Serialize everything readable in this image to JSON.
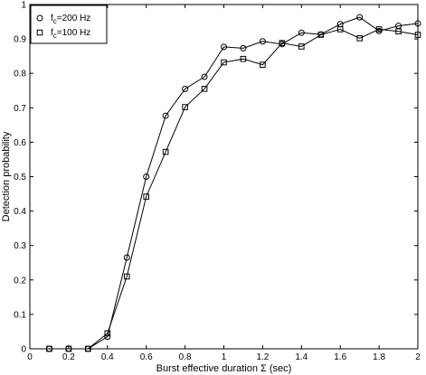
{
  "chart_data": {
    "type": "line",
    "title": "",
    "xlabel": "Burst effective duration Σ (sec)",
    "ylabel": "Detection probability",
    "xlim": [
      0,
      2
    ],
    "ylim": [
      0,
      1
    ],
    "x_ticks": [
      0,
      0.2,
      0.4,
      0.6,
      0.8,
      1,
      1.2,
      1.4,
      1.6,
      1.8,
      2
    ],
    "y_ticks": [
      0,
      0.1,
      0.2,
      0.3,
      0.4,
      0.5,
      0.6,
      0.7,
      0.8,
      0.9,
      1
    ],
    "grid": false,
    "legend_position": "top-left",
    "x": [
      0.1,
      0.2,
      0.3,
      0.4,
      0.5,
      0.6,
      0.7,
      0.8,
      0.9,
      1.0,
      1.1,
      1.2,
      1.3,
      1.4,
      1.5,
      1.6,
      1.7,
      1.8,
      1.9,
      2.0
    ],
    "series": [
      {
        "name": "f_c=200 Hz",
        "label_base": "f",
        "label_sub": "c",
        "label_rest": "=200 Hz",
        "marker": "circle",
        "color": "#000000",
        "values": [
          0,
          0,
          0,
          0.035,
          0.265,
          0.5,
          0.677,
          0.755,
          0.79,
          0.877,
          0.873,
          0.893,
          0.885,
          0.918,
          0.913,
          0.943,
          0.963,
          0.923,
          0.938,
          0.945
        ]
      },
      {
        "name": "f_c=100 Hz",
        "label_base": "f",
        "label_sub": "c",
        "label_rest": "=100 Hz",
        "marker": "square",
        "color": "#000000",
        "values": [
          0,
          0,
          0,
          0.045,
          0.21,
          0.442,
          0.572,
          0.702,
          0.755,
          0.832,
          0.842,
          0.825,
          0.888,
          0.878,
          0.912,
          0.928,
          0.902,
          0.928,
          0.922,
          0.912
        ]
      }
    ]
  }
}
